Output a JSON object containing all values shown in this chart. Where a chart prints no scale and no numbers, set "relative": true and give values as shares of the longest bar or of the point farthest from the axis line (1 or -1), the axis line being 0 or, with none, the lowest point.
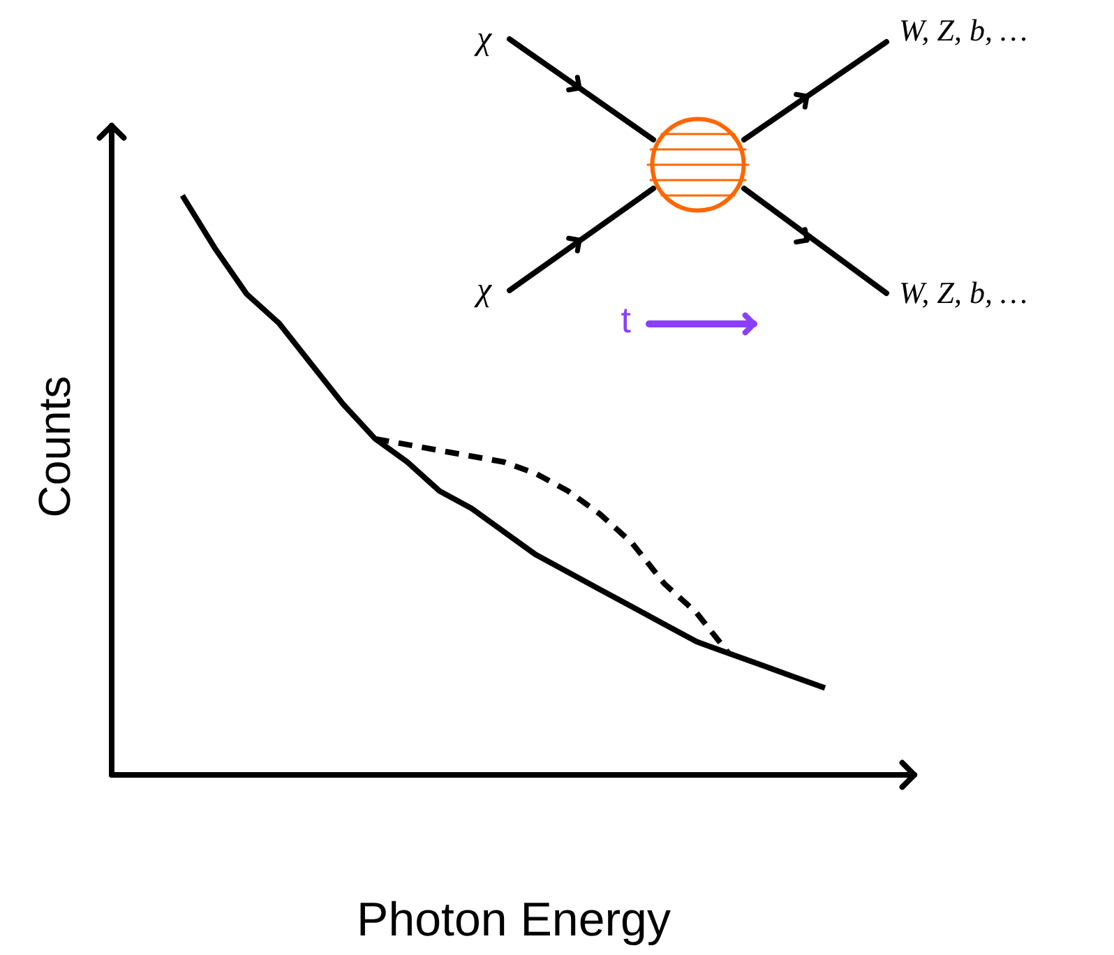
{
  "chart_data": {
    "type": "line",
    "relative": true,
    "xlabel": "Photon Energy",
    "ylabel": "Counts",
    "categories": [
      null,
      null,
      null,
      null,
      null,
      null,
      null,
      null,
      null,
      null,
      null,
      null,
      null,
      null,
      null,
      null,
      null,
      null,
      null,
      null,
      null
    ],
    "series": [
      {
        "color": "#000000",
        "line_style": "solid",
        "values": [
          1.0,
          0.91,
          0.83,
          0.78,
          0.71,
          0.64,
          0.58,
          0.54,
          0.49,
          0.46,
          0.42,
          0.38,
          0.35,
          0.32,
          0.29,
          0.26,
          0.23,
          0.21,
          0.19,
          0.17,
          0.15
        ]
      },
      {
        "color": "#000000",
        "line_style": "dashed",
        "values": [
          null,
          null,
          null,
          null,
          null,
          null,
          0.58,
          0.57,
          0.56,
          0.55,
          0.54,
          0.52,
          0.49,
          0.45,
          0.4,
          0.33,
          0.28,
          0.21,
          null,
          null,
          null
        ]
      }
    ],
    "annotations": [
      "χ",
      "χ",
      "W, Z, b, …",
      "W, Z, b, …",
      "t"
    ],
    "marker": "none"
  }
}
